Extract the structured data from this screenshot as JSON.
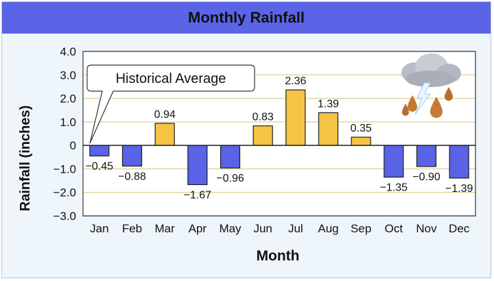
{
  "chart_data": {
    "type": "bar",
    "title": "Monthly Rainfall",
    "xlabel": "Month",
    "ylabel": "Rainfall (inches)",
    "categories": [
      "Jan",
      "Feb",
      "Mar",
      "Apr",
      "May",
      "Jun",
      "Jul",
      "Aug",
      "Sep",
      "Oct",
      "Nov",
      "Dec"
    ],
    "values": [
      -0.45,
      -0.88,
      0.94,
      -1.67,
      -0.96,
      0.83,
      2.36,
      1.39,
      0.35,
      -1.35,
      -0.9,
      -1.39
    ],
    "value_labels": [
      "−0.45",
      "−0.88",
      "0.94",
      "−1.67",
      "−0.96",
      "0.83",
      "2.36",
      "1.39",
      "0.35",
      "−1.35",
      "−0.90",
      "−1.39"
    ],
    "ylim": [
      -3.0,
      4.0
    ],
    "yticks": [
      4.0,
      3.0,
      2.0,
      1.0,
      0,
      -1.0,
      -2.0,
      -3.0
    ],
    "ytick_labels": [
      "4.0",
      "3.0",
      "2.0",
      "1.0",
      "0",
      "−1.0",
      "−2.0",
      "−3.0"
    ],
    "grid": true,
    "annotation": "Historical Average",
    "colors": {
      "positive": "#f6c445",
      "negative": "#5a62e6",
      "title_bar": "#5b63e6",
      "grid": "#e2d7a0"
    }
  }
}
